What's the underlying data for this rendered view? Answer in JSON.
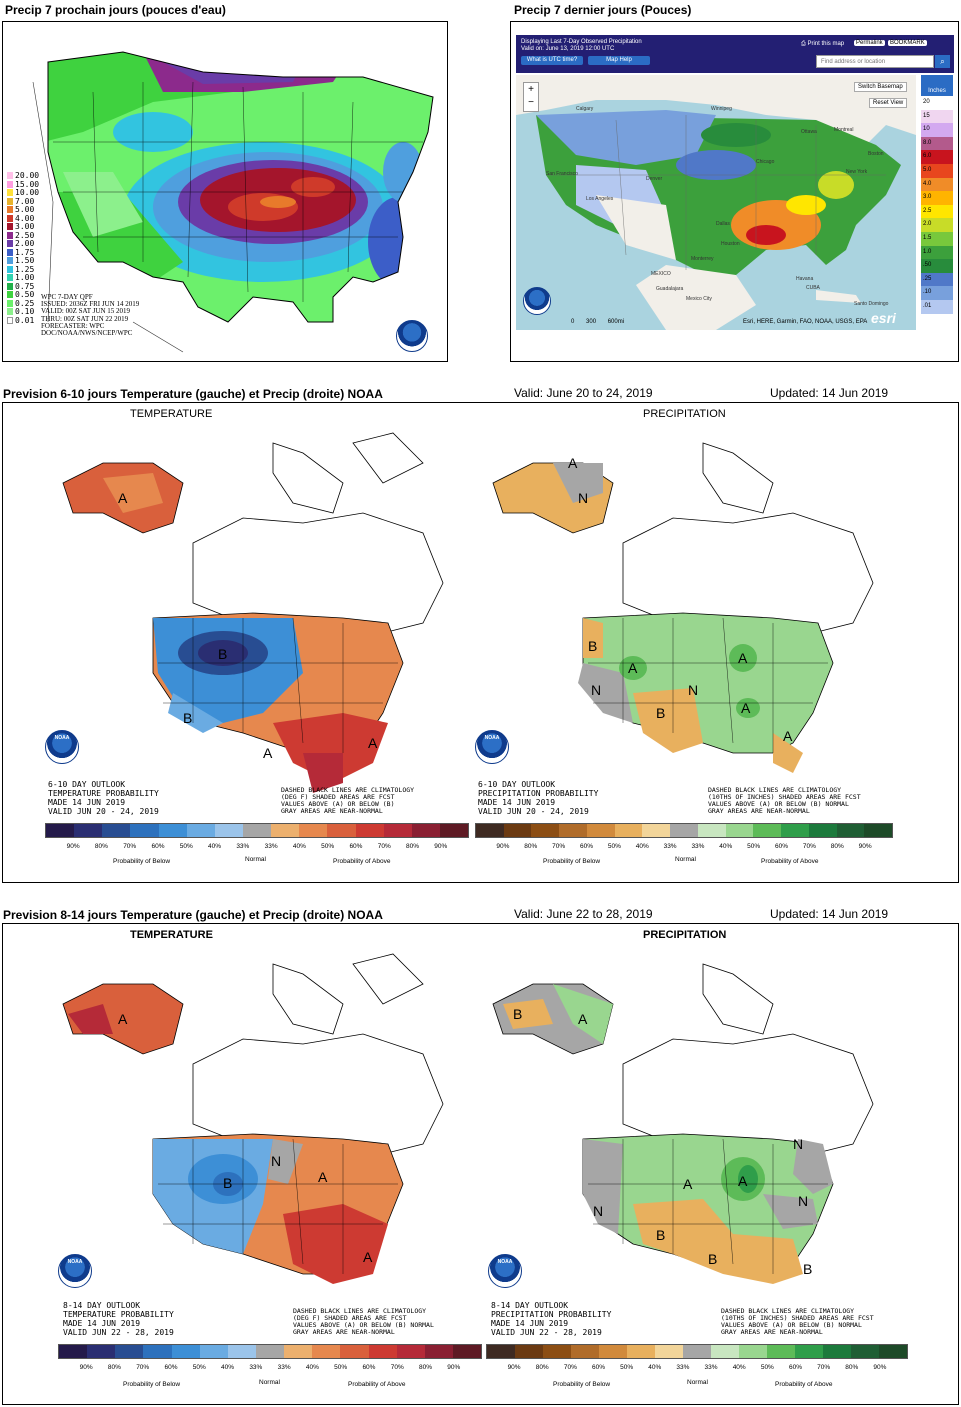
{
  "top_left": {
    "title": "Precip 7 prochain jours (pouces d'eau)",
    "legend": [
      {
        "label": "20.00",
        "color": "#ffc0e8"
      },
      {
        "label": "15.00",
        "color": "#ff9ee0"
      },
      {
        "label": "10.00",
        "color": "#ffe13a"
      },
      {
        "label": "7.00",
        "color": "#e8b42c"
      },
      {
        "label": "5.00",
        "color": "#e87a2b"
      },
      {
        "label": "4.00",
        "color": "#cf3a2a"
      },
      {
        "label": "3.00",
        "color": "#a4152c"
      },
      {
        "label": "2.50",
        "color": "#8c2a8c"
      },
      {
        "label": "2.00",
        "color": "#6a3ca8"
      },
      {
        "label": "1.75",
        "color": "#3c5ec8"
      },
      {
        "label": "1.50",
        "color": "#4f9fde"
      },
      {
        "label": "1.25",
        "color": "#32c4e0"
      },
      {
        "label": "1.00",
        "color": "#33d3b0"
      },
      {
        "label": "0.75",
        "color": "#22b04a"
      },
      {
        "label": "0.50",
        "color": "#3fd23f"
      },
      {
        "label": "0.25",
        "color": "#6cf06c"
      },
      {
        "label": "0.10",
        "color": "#8cf08c"
      },
      {
        "label": "0.01",
        "color": "#ffffff"
      }
    ],
    "info_lines": [
      "WPC 7-DAY QPF",
      "ISSUED: 2036Z FRI JUN 14 2019",
      "VALID: 00Z SAT JUN 15 2019",
      "THRU: 00Z SAT JUN 22 2019",
      "FORECASTER: WPC",
      "DOC/NOAA/NWS/NCEP/WPC"
    ]
  },
  "top_right": {
    "title": "Precip 7 dernier jours (Pouces)",
    "banner_line1": "Displaying Last 7-Day Observed Precipitation",
    "banner_line2": "Valid on: June 13, 2019 12:00 UTC",
    "btn_utc": "What is UTC time?",
    "btn_help": "Map Help",
    "print": "Print this map",
    "permalink": "Permalink",
    "bookmark": "BOOKMARK",
    "search_placeholder": "Find address or location",
    "switch_basemap": "Switch Basemap",
    "reset_view": "Reset View",
    "legend_title": "Inches",
    "legend": [
      {
        "label": "20",
        "color": "#ffffff"
      },
      {
        "label": "15",
        "color": "#f0d6f0"
      },
      {
        "label": "10",
        "color": "#d3a9f0"
      },
      {
        "label": "8.0",
        "color": "#b35a8c"
      },
      {
        "label": "6.0",
        "color": "#c8141e"
      },
      {
        "label": "5.0",
        "color": "#e8461e"
      },
      {
        "label": "4.0",
        "color": "#f08c28"
      },
      {
        "label": "3.0",
        "color": "#ffb400"
      },
      {
        "label": "2.5",
        "color": "#ffe600"
      },
      {
        "label": "2.0",
        "color": "#c8dc28"
      },
      {
        "label": "1.5",
        "color": "#78c83c"
      },
      {
        "label": "1.0",
        "color": "#3ca03c"
      },
      {
        "label": ".50",
        "color": "#288c3c"
      },
      {
        "label": ".25",
        "color": "#5078c8"
      },
      {
        "label": ".10",
        "color": "#78a0dc"
      },
      {
        "label": ".01",
        "color": "#b4c8f0"
      }
    ],
    "places": [
      "Ottawa",
      "Montreal",
      "Boston",
      "New York",
      "Chicago",
      "Denver",
      "San Francisco",
      "Los Angeles",
      "Dallas",
      "Houston",
      "MEXICO",
      "Guadalajara",
      "Mexico City",
      "Monterrey",
      "Havana",
      "CUBA",
      "Santo Domingo",
      "Calgary",
      "Winnipeg"
    ],
    "scale": [
      "0",
      "300",
      "600mi"
    ],
    "attribution": "Esri, HERE, Garmin, FAO, NOAA, USGS, EPA",
    "esri": "esri"
  },
  "sec1": {
    "title": "Prevision 6-10 jours Temperature (gauche) et Precip (droite) NOAA",
    "valid": "Valid: June 20 to 24, 2019",
    "updated": "Updated: 14 Jun 2019",
    "temp_label": "TEMPERATURE",
    "precip_label": "PRECIPITATION",
    "temp_outlook": [
      "6-10 DAY OUTLOOK",
      "TEMPERATURE PROBABILITY",
      "MADE  14 JUN 2019",
      "VALID  JUN 20 - 24, 2019"
    ],
    "precip_outlook": [
      "6-10 DAY OUTLOOK",
      "PRECIPITATION PROBABILITY",
      "MADE  14 JUN 2019",
      "VALID  JUN 20 - 24, 2019"
    ],
    "temp_note": [
      "DASHED BLACK LINES ARE CLIMATOLOGY",
      "(DEG F) SHADED AREAS ARE FCST",
      "VALUES ABOVE (A) OR BELOW (B)",
      "GRAY AREAS ARE NEAR-NORMAL"
    ],
    "precip_note": [
      "DASHED BLACK LINES ARE CLIMATOLOGY",
      "(10THS OF INCHES) SHADED AREAS ARE FCST",
      "VALUES ABOVE (A) OR BELOW (B) NORMAL",
      "GRAY AREAS ARE NEAR-NORMAL"
    ]
  },
  "sec2": {
    "title": "Prevision 8-14 jours Temperature (gauche) et Precip (droite) NOAA",
    "valid": "Valid: June 22 to 28, 2019",
    "updated": "Updated: 14 Jun 2019",
    "temp_label": "TEMPERATURE",
    "precip_label": "PRECIPITATION",
    "temp_outlook": [
      "8-14 DAY OUTLOOK",
      "TEMPERATURE PROBABILITY",
      "MADE  14 JUN 2019",
      "VALID  JUN 22 - 28, 2019"
    ],
    "precip_outlook": [
      "8-14 DAY OUTLOOK",
      "PRECIPITATION PROBABILITY",
      "MADE  14 JUN 2019",
      "VALID  JUN 22 - 28, 2019"
    ],
    "temp_note": [
      "DASHED BLACK LINES ARE CLIMATOLOGY",
      "(DEG F) SHADED AREAS ARE FCST",
      "VALUES ABOVE (A) OR BELOW (B) NORMAL",
      "GRAY AREAS ARE NEAR-NORMAL"
    ],
    "precip_note": [
      "DASHED BLACK LINES ARE CLIMATOLOGY",
      "(10THS OF INCHES) SHADED AREAS ARE FCST",
      "VALUES ABOVE (A) OR BELOW (B) NORMAL",
      "GRAY AREAS ARE NEAR-NORMAL"
    ]
  },
  "scales": {
    "ticks": [
      "90%",
      "80%",
      "70%",
      "60%",
      "50%",
      "40%",
      "33%",
      "33%",
      "40%",
      "50%",
      "60%",
      "70%",
      "80%",
      "90%"
    ],
    "prob_below": "Probability of Below",
    "normal": "Normal",
    "prob_above": "Probability of Above",
    "temp_colors": [
      "#241a4a",
      "#2a2e72",
      "#284d92",
      "#2d71bd",
      "#3d8fd6",
      "#6aabe2",
      "#9bc4ea",
      "#a6a6a6",
      "#ecb06e",
      "#e6884e",
      "#d9603c",
      "#cd3a32",
      "#b52a38",
      "#8a1f32",
      "#5e1a24"
    ],
    "precip_colors": [
      "#3e2a22",
      "#6b3a12",
      "#8c4e14",
      "#b06c2a",
      "#d18a3c",
      "#e8b05e",
      "#f2d59a",
      "#a6a6a6",
      "#c8e6c0",
      "#99d68f",
      "#5dbb58",
      "#2f9e4a",
      "#1c7a3c",
      "#1f5e34",
      "#1d4a28"
    ]
  },
  "map_letters": {
    "s1_temp": [
      "B",
      "B",
      "A",
      "A",
      "A"
    ],
    "s1_precip": [
      "A",
      "N",
      "B",
      "B",
      "N",
      "A",
      "A",
      "A",
      "A",
      "N"
    ],
    "s2_temp": [
      "A",
      "B",
      "N",
      "A",
      "A"
    ],
    "s2_precip": [
      "B",
      "A",
      "N",
      "A",
      "A",
      "B",
      "N",
      "N",
      "B",
      "B"
    ]
  },
  "noaa_logo": "NOAA",
  "colors": {
    "accent": "#231f73",
    "ocean": "#aad3df",
    "land": "#f2efe9"
  }
}
